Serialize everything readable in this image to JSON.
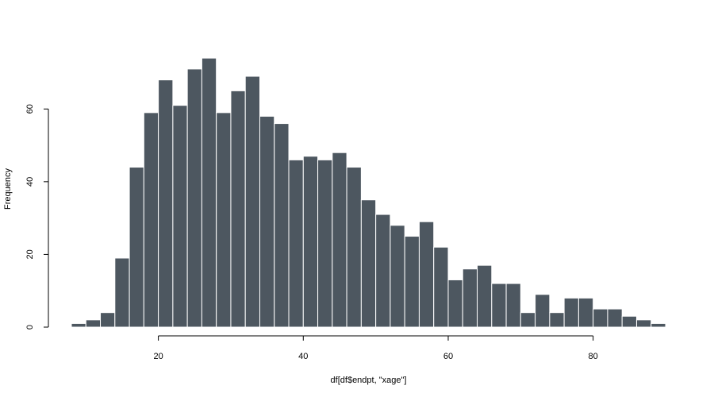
{
  "chart_data": {
    "type": "bar",
    "title": "",
    "xlabel": "df[df$endpt, \"xage\"]",
    "ylabel": "Frequency",
    "bin_width": 2,
    "bin_start": 8,
    "values": [
      1,
      2,
      4,
      19,
      44,
      59,
      68,
      61,
      71,
      74,
      59,
      65,
      69,
      58,
      56,
      46,
      47,
      46,
      48,
      44,
      35,
      31,
      28,
      25,
      29,
      22,
      13,
      16,
      17,
      12,
      12,
      4,
      9,
      4,
      8,
      8,
      5,
      5,
      3,
      2,
      1
    ],
    "xlim": [
      8,
      90
    ],
    "ylim": [
      0,
      76
    ],
    "x_ticks": [
      20,
      40,
      60,
      80
    ],
    "y_ticks": [
      0,
      20,
      40,
      60
    ],
    "grid": false,
    "bar_color": "#4d5760",
    "edge_color": "#ffffff"
  }
}
